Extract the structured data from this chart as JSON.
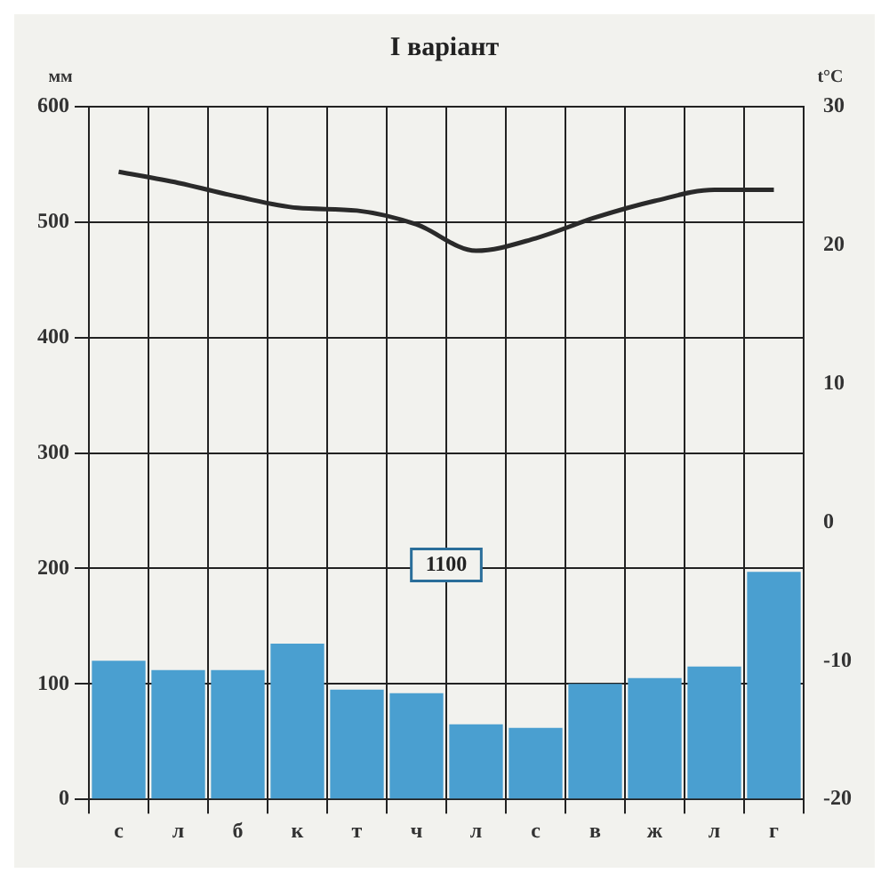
{
  "chart_data": {
    "type": "bar",
    "title": "І варіант",
    "ylabel": "мм",
    "y2label": "t°C",
    "categories": [
      "с",
      "л",
      "б",
      "к",
      "т",
      "ч",
      "л",
      "с",
      "в",
      "ж",
      "л",
      "г"
    ],
    "series": [
      {
        "color": "#4a9fd0",
        "values": [
          120,
          112,
          112,
          135,
          95,
          92,
          65,
          62,
          100,
          105,
          115,
          197
        ]
      },
      {
        "type": "line",
        "axis": "y2",
        "color": "#2a2a2a",
        "values": [
          25.3,
          24.5,
          23.5,
          22.7,
          22.5,
          21.5,
          19.6,
          20.5,
          22,
          23.2,
          24,
          24
        ]
      }
    ],
    "ylim": [
      0,
      600
    ],
    "yticks": [
      0,
      100,
      200,
      300,
      400,
      500,
      600
    ],
    "y2lim": [
      -20,
      30
    ],
    "y2ticks": [
      -20,
      -10,
      0,
      10,
      20,
      30
    ],
    "grid": true,
    "legend": false,
    "marker": "none",
    "line_style": "solid",
    "annotations": [
      "1100"
    ]
  }
}
